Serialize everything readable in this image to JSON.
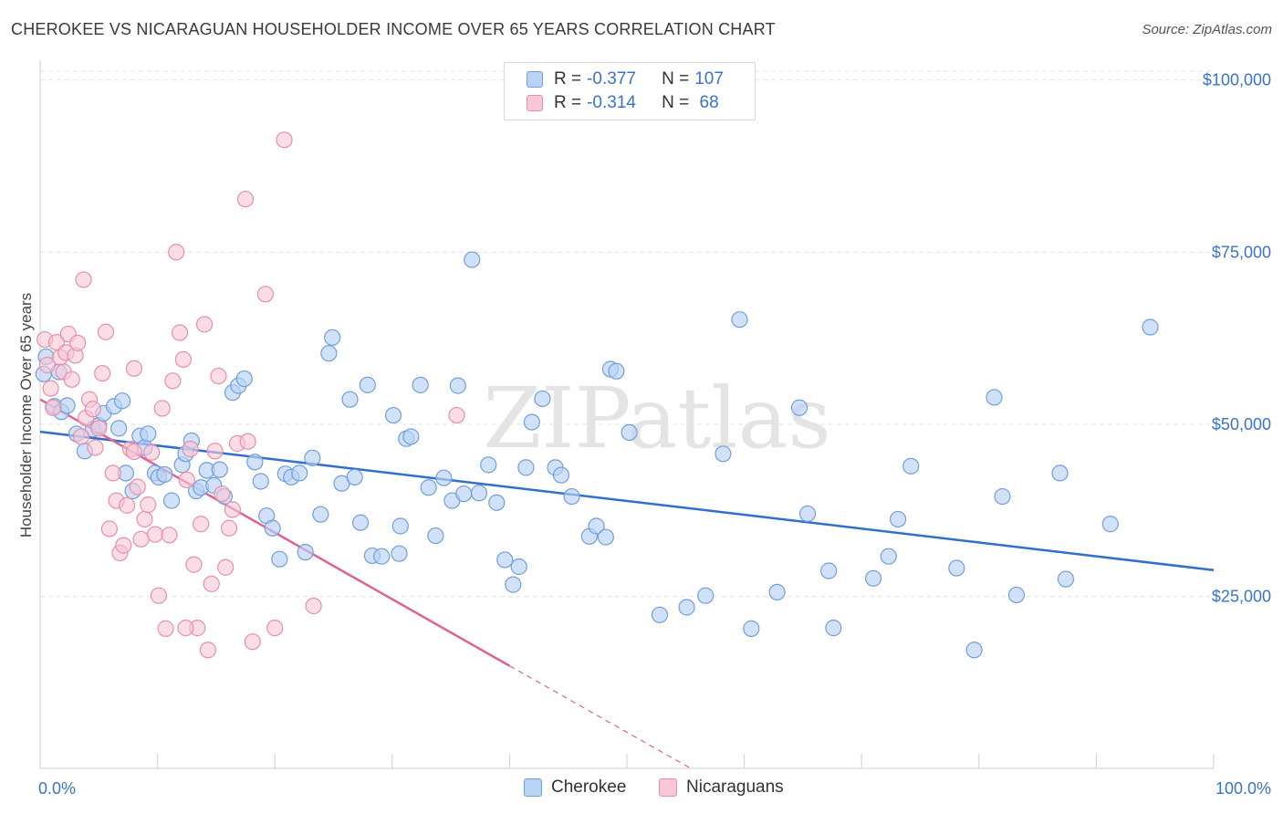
{
  "title": "CHEROKEE VS NICARAGUAN HOUSEHOLDER INCOME OVER 65 YEARS CORRELATION CHART",
  "source": "Source: ZipAtlas.com",
  "watermark": "ZIPatlas",
  "legend": {
    "rows": [
      {
        "r_label": "R = ",
        "r_value": "-0.377",
        "n_label": "N = ",
        "n_value": "107",
        "color": "blue"
      },
      {
        "r_label": "R = ",
        "r_value": "-0.314",
        "n_label": "N = ",
        "n_value": " 68",
        "color": "pink"
      }
    ]
  },
  "bottom_legend": [
    "Cherokee",
    "Nicaraguans"
  ],
  "colors": {
    "blue_fill": "#b9d3f5",
    "blue_stroke": "#6f9fdc",
    "blue_line": "#2f6fce",
    "pink_fill": "#f8c6d6",
    "pink_stroke": "#e88fac",
    "pink_line": "#e0628f",
    "grid": "#e3e3e3",
    "label": "#3a73c9"
  },
  "chart_data": {
    "type": "scatter",
    "title": "CHEROKEE VS NICARAGUAN HOUSEHOLDER INCOME OVER 65 YEARS CORRELATION CHART",
    "xlabel": "",
    "ylabel": "Householder Income Over 65 years",
    "xlim": [
      0,
      100
    ],
    "ylim": [
      0,
      105000
    ],
    "x_tick_labels": [
      "0.0%",
      "100.0%"
    ],
    "y_ticks": [
      25000,
      50000,
      75000,
      100000
    ],
    "y_tick_labels": [
      "$25,000",
      "$50,000",
      "$75,000",
      "$100,000"
    ],
    "grid": true,
    "legend_position": "top-center",
    "series": [
      {
        "name": "Cherokee",
        "color": "#6f9fdc",
        "trend": {
          "x": [
            0,
            100
          ],
          "y": [
            48900,
            28800
          ]
        },
        "points": [
          [
            0.3,
            57300
          ],
          [
            0.5,
            59800
          ],
          [
            1.2,
            52600
          ],
          [
            1.6,
            57600
          ],
          [
            1.8,
            51800
          ],
          [
            2.3,
            52700
          ],
          [
            3.1,
            48600
          ],
          [
            3.8,
            46100
          ],
          [
            4.5,
            49300
          ],
          [
            5.0,
            49800
          ],
          [
            5.4,
            51600
          ],
          [
            6.3,
            52600
          ],
          [
            6.7,
            49400
          ],
          [
            7.0,
            53400
          ],
          [
            7.3,
            42900
          ],
          [
            7.9,
            40300
          ],
          [
            8.5,
            48300
          ],
          [
            8.9,
            46600
          ],
          [
            9.2,
            48600
          ],
          [
            9.8,
            42900
          ],
          [
            10.1,
            42300
          ],
          [
            10.6,
            42700
          ],
          [
            11.2,
            38900
          ],
          [
            12.1,
            44100
          ],
          [
            12.4,
            45700
          ],
          [
            12.9,
            47600
          ],
          [
            13.3,
            40300
          ],
          [
            13.7,
            40800
          ],
          [
            14.2,
            43300
          ],
          [
            14.8,
            41100
          ],
          [
            15.3,
            43400
          ],
          [
            15.7,
            39500
          ],
          [
            16.4,
            54600
          ],
          [
            16.9,
            55600
          ],
          [
            17.4,
            56600
          ],
          [
            18.3,
            44500
          ],
          [
            18.8,
            41700
          ],
          [
            19.3,
            36700
          ],
          [
            19.8,
            34900
          ],
          [
            20.4,
            30400
          ],
          [
            20.9,
            42800
          ],
          [
            21.4,
            42300
          ],
          [
            22.1,
            42900
          ],
          [
            22.6,
            31400
          ],
          [
            23.2,
            45100
          ],
          [
            23.9,
            36900
          ],
          [
            24.6,
            60300
          ],
          [
            24.9,
            62600
          ],
          [
            25.7,
            41400
          ],
          [
            26.4,
            53600
          ],
          [
            26.8,
            42300
          ],
          [
            27.3,
            35700
          ],
          [
            27.9,
            55700
          ],
          [
            28.3,
            30900
          ],
          [
            29.1,
            30800
          ],
          [
            30.6,
            31200
          ],
          [
            30.1,
            51300
          ],
          [
            30.7,
            35200
          ],
          [
            31.2,
            47900
          ],
          [
            31.6,
            48200
          ],
          [
            32.4,
            55700
          ],
          [
            33.1,
            40800
          ],
          [
            33.7,
            33800
          ],
          [
            34.4,
            42200
          ],
          [
            35.1,
            38900
          ],
          [
            35.6,
            55600
          ],
          [
            36.1,
            39900
          ],
          [
            36.8,
            73900
          ],
          [
            37.4,
            40000
          ],
          [
            38.2,
            44100
          ],
          [
            38.9,
            38600
          ],
          [
            39.6,
            30300
          ],
          [
            40.3,
            26700
          ],
          [
            40.8,
            29300
          ],
          [
            41.4,
            43700
          ],
          [
            41.9,
            50300
          ],
          [
            42.8,
            53700
          ],
          [
            43.9,
            43700
          ],
          [
            44.4,
            42600
          ],
          [
            45.3,
            39500
          ],
          [
            46.8,
            33700
          ],
          [
            47.4,
            35200
          ],
          [
            48.2,
            33600
          ],
          [
            48.6,
            58000
          ],
          [
            49.1,
            57700
          ],
          [
            50.2,
            48800
          ],
          [
            52.8,
            22300
          ],
          [
            55.1,
            23400
          ],
          [
            56.7,
            25100
          ],
          [
            58.2,
            45700
          ],
          [
            59.6,
            65200
          ],
          [
            60.6,
            20300
          ],
          [
            62.8,
            25600
          ],
          [
            64.7,
            52400
          ],
          [
            65.4,
            37000
          ],
          [
            67.2,
            28700
          ],
          [
            67.6,
            20400
          ],
          [
            71.0,
            27600
          ],
          [
            72.3,
            30800
          ],
          [
            73.1,
            36200
          ],
          [
            74.2,
            43900
          ],
          [
            78.1,
            29100
          ],
          [
            79.6,
            17200
          ],
          [
            81.3,
            53900
          ],
          [
            82.0,
            39500
          ],
          [
            83.2,
            25200
          ],
          [
            86.9,
            42900
          ],
          [
            87.4,
            27500
          ],
          [
            91.2,
            35500
          ],
          [
            94.6,
            64100
          ]
        ]
      },
      {
        "name": "Nicaraguans",
        "color": "#e88fac",
        "trend": {
          "x": [
            0,
            40
          ],
          "y": [
            53600,
            14900
          ]
        },
        "trend_dashed": {
          "x": [
            40,
            60
          ],
          "y": [
            14900,
            -4400
          ]
        },
        "points": [
          [
            0.4,
            62300
          ],
          [
            0.6,
            58600
          ],
          [
            0.9,
            55200
          ],
          [
            1.1,
            52400
          ],
          [
            1.4,
            61900
          ],
          [
            1.7,
            59700
          ],
          [
            2.0,
            57600
          ],
          [
            2.2,
            60400
          ],
          [
            2.4,
            63100
          ],
          [
            2.7,
            56500
          ],
          [
            3.0,
            60000
          ],
          [
            3.2,
            61800
          ],
          [
            3.5,
            48200
          ],
          [
            3.7,
            71000
          ],
          [
            3.9,
            50900
          ],
          [
            4.2,
            53600
          ],
          [
            4.5,
            52200
          ],
          [
            4.7,
            46600
          ],
          [
            5.0,
            49400
          ],
          [
            5.3,
            57400
          ],
          [
            5.6,
            63400
          ],
          [
            5.9,
            34800
          ],
          [
            6.2,
            42900
          ],
          [
            6.5,
            38900
          ],
          [
            6.8,
            31300
          ],
          [
            7.1,
            32400
          ],
          [
            7.4,
            38200
          ],
          [
            7.7,
            46400
          ],
          [
            8.0,
            58100
          ],
          [
            8.3,
            40900
          ],
          [
            8.6,
            33300
          ],
          [
            8.9,
            36200
          ],
          [
            9.2,
            38300
          ],
          [
            9.5,
            45900
          ],
          [
            9.8,
            34000
          ],
          [
            10.1,
            25100
          ],
          [
            10.4,
            52300
          ],
          [
            10.7,
            20300
          ],
          [
            11.0,
            33900
          ],
          [
            11.3,
            56300
          ],
          [
            11.6,
            75000
          ],
          [
            11.9,
            63300
          ],
          [
            12.2,
            59400
          ],
          [
            12.5,
            41900
          ],
          [
            12.8,
            46400
          ],
          [
            13.1,
            29600
          ],
          [
            13.4,
            20400
          ],
          [
            13.7,
            35500
          ],
          [
            14.0,
            64500
          ],
          [
            14.3,
            17200
          ],
          [
            14.6,
            26800
          ],
          [
            14.9,
            46100
          ],
          [
            15.2,
            57000
          ],
          [
            15.5,
            39900
          ],
          [
            15.8,
            29200
          ],
          [
            16.1,
            34900
          ],
          [
            16.4,
            37600
          ],
          [
            16.8,
            47200
          ],
          [
            17.5,
            82700
          ],
          [
            17.7,
            47500
          ],
          [
            18.1,
            18400
          ],
          [
            19.2,
            68900
          ],
          [
            20.0,
            20400
          ],
          [
            20.8,
            91300
          ],
          [
            12.4,
            20400
          ],
          [
            23.3,
            23600
          ],
          [
            35.5,
            51300
          ],
          [
            8.0,
            46000
          ]
        ]
      }
    ]
  }
}
